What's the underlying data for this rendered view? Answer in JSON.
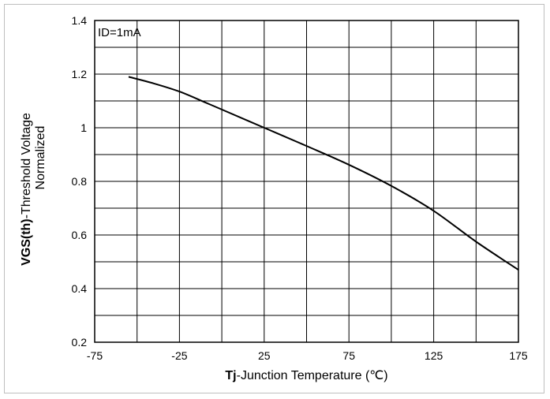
{
  "chart_data": {
    "type": "line",
    "title": "",
    "xlabel_bold": "Tj",
    "xlabel_rest": "-Junction  Temperature  (℃)",
    "ylabel_line1_bold": "VGS(th)",
    "ylabel_line1_rest": "-Threshold  Voltage",
    "ylabel_line2": "Normalized",
    "annotation": "ID=1mA",
    "xlim": [
      -75,
      175
    ],
    "ylim": [
      0.2,
      1.4
    ],
    "x_ticks": [
      -75,
      -25,
      25,
      75,
      125,
      175
    ],
    "x_tick_labels": [
      "-75",
      "-25",
      "25",
      "75",
      "125",
      "175"
    ],
    "y_ticks": [
      0.2,
      0.4,
      0.6,
      0.8,
      1.0,
      1.2,
      1.4
    ],
    "y_tick_labels": [
      "0.2",
      "0.4",
      "0.6",
      "0.8",
      "1",
      "1.2",
      "1.4"
    ],
    "x_grid_step": 25,
    "y_grid_step": 0.1,
    "grid": true,
    "line_color": "#000000",
    "series": [
      {
        "x": [
          -55,
          -40,
          -25,
          -10,
          0,
          25,
          50,
          75,
          100,
          125,
          150,
          175
        ],
        "y": [
          1.19,
          1.165,
          1.135,
          1.095,
          1.068,
          1.0,
          0.932,
          0.862,
          0.783,
          0.69,
          0.575,
          0.47
        ]
      }
    ]
  }
}
